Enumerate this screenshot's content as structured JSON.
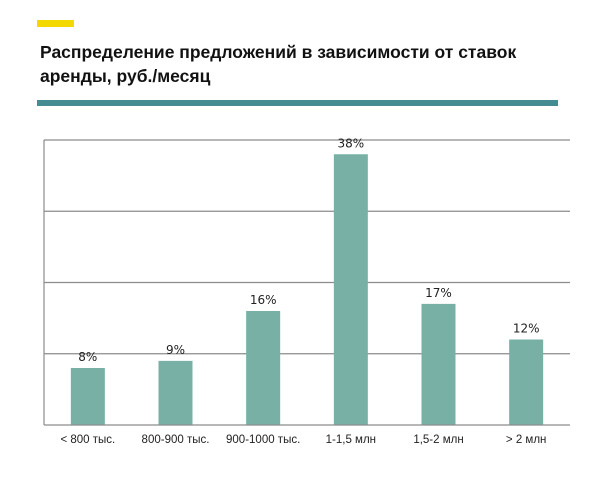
{
  "title": "Распределение предложений в зависимости от ставок аренды, руб./месяц",
  "colors": {
    "accent": "#f4d900",
    "rule": "#458c92",
    "bar": "#78b0a6",
    "grid": "#8c8c8c"
  },
  "chart_data": {
    "type": "bar",
    "title": "Распределение предложений в зависимости от ставок аренды, руб./месяц",
    "categories": [
      "< 800 тыс.",
      "800-900 тыс.",
      "900-1000 тыс.",
      "1-1,5 млн",
      "1,5-2 млн",
      "> 2 млн"
    ],
    "values": [
      8,
      9,
      16,
      38,
      17,
      12
    ],
    "data_labels": [
      "8%",
      "9%",
      "16%",
      "38%",
      "17%",
      "12%"
    ],
    "unit": "%",
    "ylim": [
      0,
      40
    ],
    "grid": true,
    "grid_step": 10,
    "y_tick_labels_shown": false,
    "xlabel": "",
    "ylabel": ""
  }
}
